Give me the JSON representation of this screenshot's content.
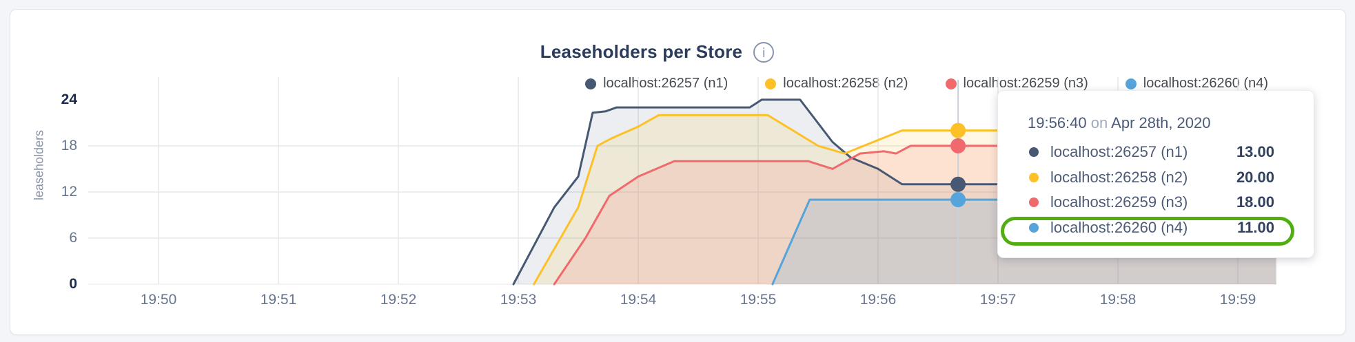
{
  "header": {
    "title": "Leaseholders per Store",
    "info_icon_glyph": "i"
  },
  "chart_data": {
    "type": "area",
    "title": "Leaseholders per Store",
    "ylabel": "leaseholders",
    "xlabel": "",
    "x_ticks": [
      "19:50",
      "19:51",
      "19:52",
      "19:53",
      "19:54",
      "19:55",
      "19:56",
      "19:57",
      "19:58",
      "19:59"
    ],
    "x_unit": "minutes after 19:50",
    "y_ticks": [
      0,
      6,
      12,
      18,
      24
    ],
    "y_ticks_bold": [
      0,
      24
    ],
    "ylim": [
      0,
      24
    ],
    "grid": true,
    "legend_position": "top-right",
    "series": [
      {
        "name": "localhost:26257 (n1)",
        "color": "#475872",
        "fill": "rgba(71,88,114,0.10)",
        "points": [
          [
            2.96,
            0
          ],
          [
            3.3,
            10
          ],
          [
            3.5,
            14
          ],
          [
            3.62,
            22.3
          ],
          [
            3.73,
            22.5
          ],
          [
            3.82,
            23
          ],
          [
            4.93,
            23
          ],
          [
            5.03,
            24
          ],
          [
            5.35,
            24
          ],
          [
            5.62,
            18.5
          ],
          [
            5.77,
            16.5
          ],
          [
            6.0,
            15
          ],
          [
            6.2,
            13
          ],
          [
            9.32,
            13
          ]
        ]
      },
      {
        "name": "localhost:26258 (n2)",
        "color": "#fdc127",
        "fill": "rgba(253,193,39,0.13)",
        "points": [
          [
            3.13,
            0
          ],
          [
            3.5,
            10
          ],
          [
            3.66,
            18
          ],
          [
            3.78,
            19
          ],
          [
            4.0,
            20.5
          ],
          [
            4.17,
            22
          ],
          [
            5.08,
            22
          ],
          [
            5.5,
            18
          ],
          [
            5.72,
            17
          ],
          [
            6.2,
            20
          ],
          [
            9.32,
            20
          ]
        ]
      },
      {
        "name": "localhost:26259 (n3)",
        "color": "#f0696c",
        "fill": "rgba(240,105,108,0.15)",
        "points": [
          [
            3.3,
            0
          ],
          [
            3.56,
            6
          ],
          [
            3.76,
            11.5
          ],
          [
            4.0,
            14
          ],
          [
            4.3,
            16
          ],
          [
            5.42,
            16
          ],
          [
            5.62,
            15
          ],
          [
            5.85,
            17
          ],
          [
            6.05,
            17.3
          ],
          [
            6.15,
            17
          ],
          [
            6.27,
            18
          ],
          [
            9.32,
            18
          ]
        ]
      },
      {
        "name": "localhost:26260 (n4)",
        "color": "#55a4db",
        "fill": "rgba(85,164,219,0.18)",
        "points": [
          [
            5.12,
            0
          ],
          [
            5.43,
            11
          ],
          [
            9.32,
            11
          ]
        ]
      }
    ],
    "hover": {
      "x_label": "19:56:40",
      "t": 6.667,
      "values": [
        13,
        20,
        18,
        11
      ]
    }
  },
  "tooltip": {
    "time": "19:56:40",
    "connector": "on",
    "date": "Apr 28th, 2020",
    "rows": [
      {
        "name": "localhost:26257 (n1)",
        "value": "13.00",
        "color": "#475872"
      },
      {
        "name": "localhost:26258 (n2)",
        "value": "20.00",
        "color": "#fdc127"
      },
      {
        "name": "localhost:26259 (n3)",
        "value": "18.00",
        "color": "#f0696c"
      },
      {
        "name": "localhost:26260 (n4)",
        "value": "11.00",
        "color": "#55a4db"
      }
    ],
    "highlight": {
      "row_index": 3,
      "color": "#52ae10"
    }
  }
}
